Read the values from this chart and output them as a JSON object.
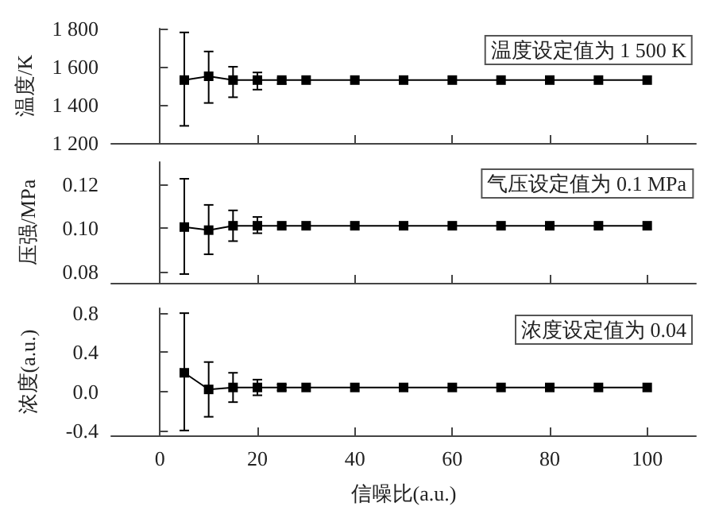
{
  "chart_data": [
    {
      "type": "line",
      "x": [
        5,
        10,
        15,
        20,
        25,
        30,
        40,
        50,
        60,
        70,
        80,
        90,
        100
      ],
      "series": [
        {
          "color": "#000000",
          "values": [
            1530,
            1550,
            1530,
            1530,
            1530,
            1530,
            1530,
            1530,
            1530,
            1530,
            1530,
            1530,
            1530
          ],
          "errors": [
            [
              1290,
              1780
            ],
            [
              1410,
              1680
            ],
            [
              1440,
              1600
            ],
            [
              1480,
              1570
            ],
            [
              1510,
              1540
            ],
            null,
            null,
            null,
            null,
            null,
            null,
            null,
            null
          ]
        }
      ],
      "xlim": [
        -10,
        110
      ],
      "xticks": [
        {
          "value": 0,
          "label": null
        },
        {
          "value": 20,
          "label": null
        },
        {
          "value": 40,
          "label": null
        },
        {
          "value": 60,
          "label": null
        },
        {
          "value": 80,
          "label": null
        },
        {
          "value": 100,
          "label": null
        }
      ],
      "ylim": [
        1200,
        1800
      ],
      "yticks": [
        {
          "value": 1200,
          "label": "1 200"
        },
        {
          "value": 1400,
          "label": "1 400"
        },
        {
          "value": 1600,
          "label": "1 600"
        },
        {
          "value": 1800,
          "label": "1 800"
        }
      ],
      "ylabel": "温度/K",
      "annotations": [
        "温度设定值为 1 500 K"
      ],
      "tick_labels": "y",
      "marker": "square",
      "line_style": "solid"
    },
    {
      "type": "line",
      "x": [
        5,
        10,
        15,
        20,
        25,
        30,
        40,
        50,
        60,
        70,
        80,
        90,
        100
      ],
      "series": [
        {
          "color": "#000000",
          "values": [
            0.1004,
            0.099,
            0.101,
            0.101,
            0.101,
            0.101,
            0.101,
            0.101,
            0.101,
            0.101,
            0.101,
            0.101,
            0.101
          ],
          "errors": [
            [
              0.079,
              0.1224
            ],
            [
              0.088,
              0.1105
            ],
            [
              0.094,
              0.108
            ],
            [
              0.0976,
              0.105
            ],
            null,
            null,
            null,
            null,
            null,
            null,
            null,
            null,
            null
          ]
        }
      ],
      "xlim": [
        -10,
        110
      ],
      "xticks": [
        {
          "value": 0,
          "label": null
        },
        {
          "value": 20,
          "label": null
        },
        {
          "value": 40,
          "label": null
        },
        {
          "value": 60,
          "label": null
        },
        {
          "value": 80,
          "label": null
        },
        {
          "value": 100,
          "label": null
        }
      ],
      "ylim": [
        0.075,
        0.13
      ],
      "yticks": [
        0.08,
        {
          "value": 0.1,
          "label": "0.10"
        },
        0.12
      ],
      "ylabel": "压强/MPa",
      "annotations": [
        "气压设定值为 0.1 MPa"
      ],
      "tick_labels": "y",
      "marker": "square",
      "line_style": "solid"
    },
    {
      "type": "line",
      "x": [
        5,
        10,
        15,
        20,
        25,
        30,
        40,
        50,
        60,
        70,
        80,
        90,
        100
      ],
      "series": [
        {
          "color": "#000000",
          "values": [
            0.19,
            0.02,
            0.04,
            0.04,
            0.04,
            0.04,
            0.04,
            0.04,
            0.04,
            0.04,
            0.04,
            0.04,
            0.04
          ],
          "errors": [
            [
              -0.4,
              0.8
            ],
            [
              -0.26,
              0.3
            ],
            [
              -0.11,
              0.19
            ],
            [
              -0.04,
              0.12
            ],
            [
              0.01,
              0.07
            ],
            null,
            null,
            null,
            null,
            null,
            null,
            null,
            null
          ]
        }
      ],
      "xlim": [
        -10,
        110
      ],
      "xticks": [
        0,
        20,
        40,
        60,
        80,
        100
      ],
      "ylim": [
        -0.45,
        0.85
      ],
      "yticks": [
        {
          "value": -0.4,
          "label": "-0.4"
        },
        {
          "value": 0,
          "label": "0.0"
        },
        {
          "value": 0.4,
          "label": "0.4"
        },
        {
          "value": 0.8,
          "label": "0.8"
        }
      ],
      "ylabel": "浓度(a.u.)",
      "xlabel": "信噪比(a.u.)",
      "annotations": [
        "浓度设定值为 0.04"
      ],
      "marker": "square",
      "line_style": "solid"
    }
  ]
}
